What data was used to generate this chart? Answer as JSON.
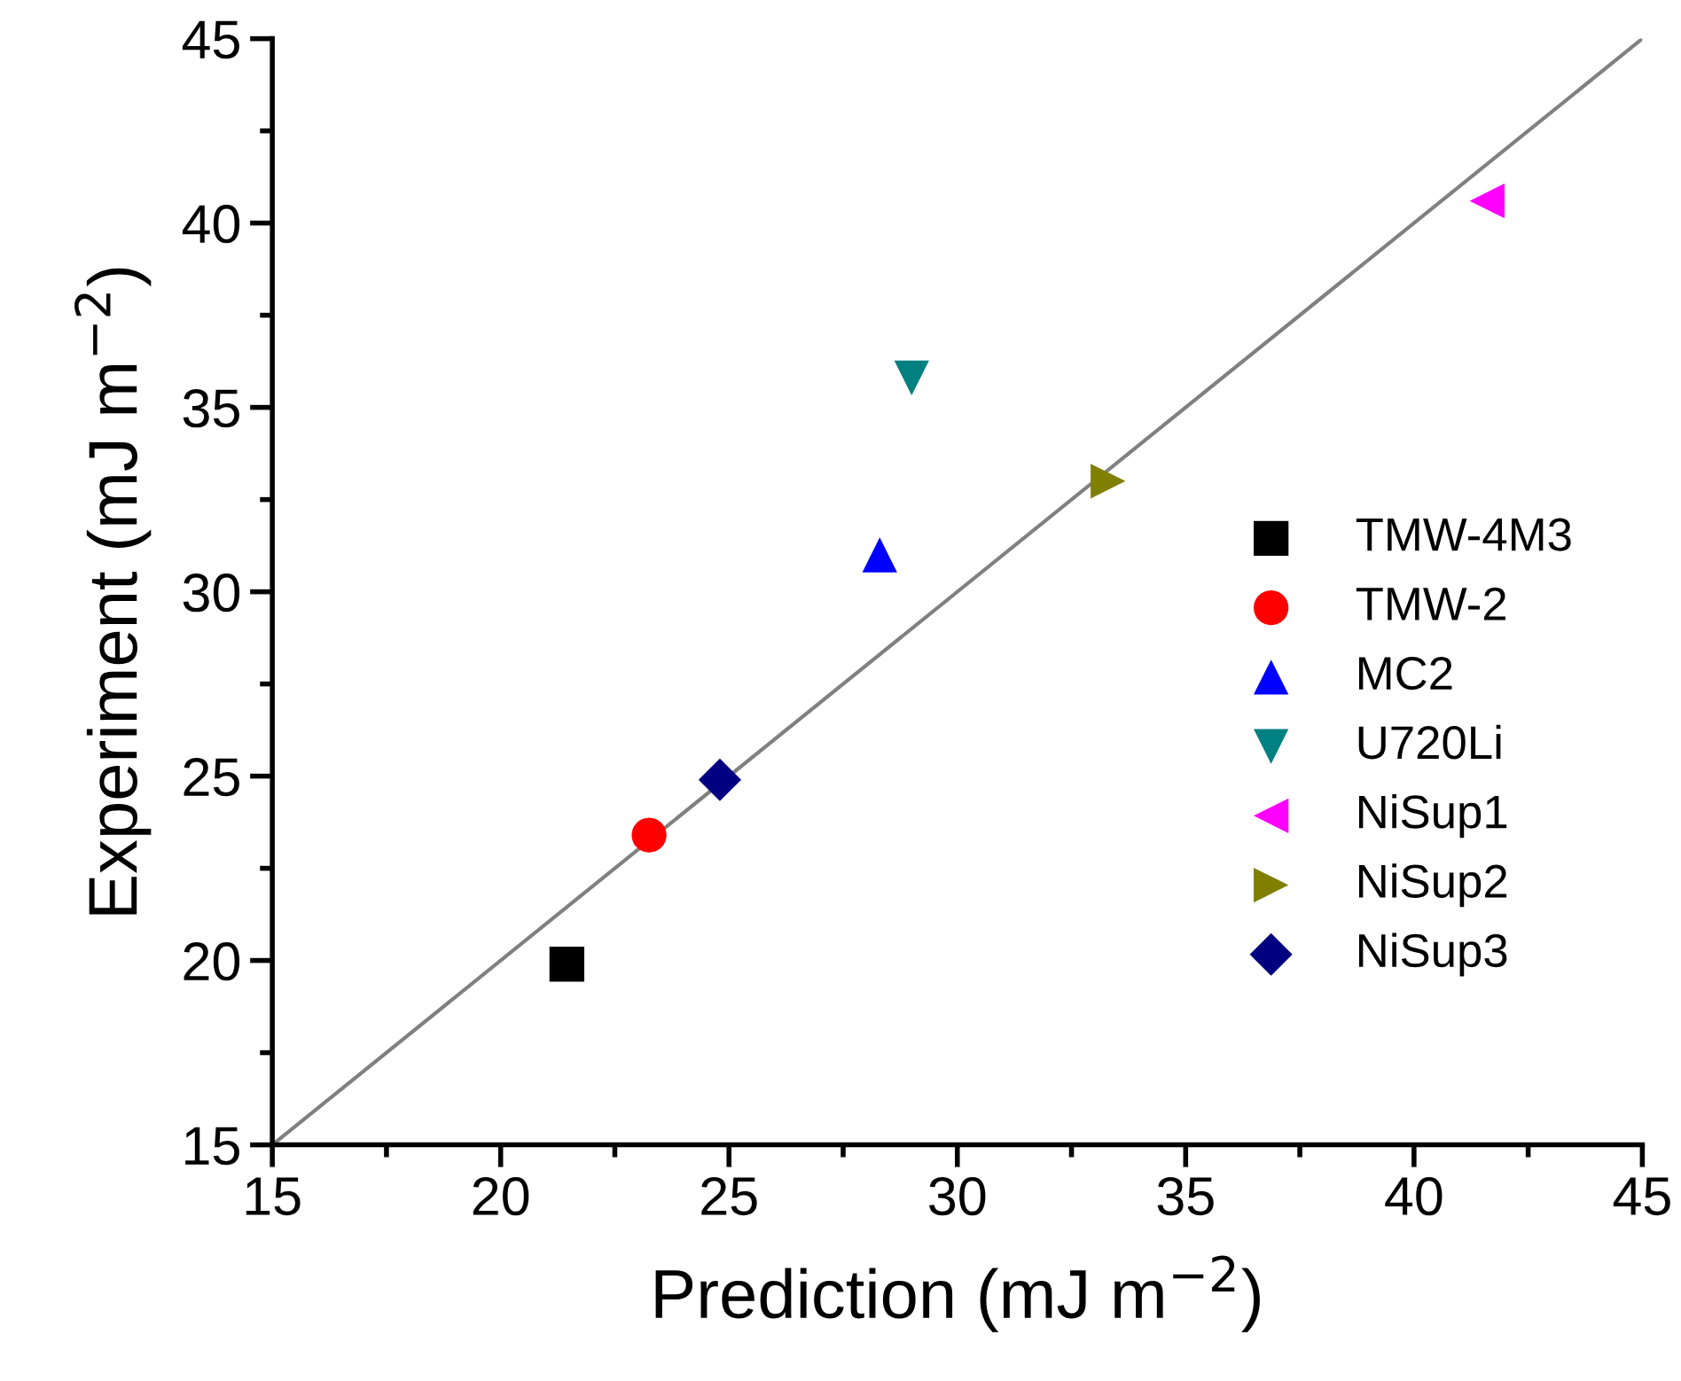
{
  "chart_data": {
    "type": "scatter",
    "xlabel": "Prediction (mJ m$^{−2}$)",
    "ylabel": "Experiment (mJ m$^{−2}$)",
    "xlim": [
      15,
      45
    ],
    "ylim": [
      15,
      45
    ],
    "xticks": [
      15,
      20,
      25,
      30,
      35,
      40,
      45
    ],
    "yticks": [
      15,
      20,
      25,
      30,
      35,
      40,
      45
    ],
    "grid": false,
    "legend": "right",
    "series": [
      {
        "type": "line",
        "x": [
          15,
          45
        ],
        "values": [
          15,
          45
        ],
        "color": "#808080",
        "marker": "none",
        "line_style": "solid"
      },
      {
        "name": "TMW-4M3",
        "color": "#000000",
        "marker": "square",
        "x": [
          21.45
        ],
        "values": [
          19.9
        ]
      },
      {
        "name": "TMW-2",
        "color": "#ff0000",
        "marker": "circle",
        "x": [
          23.25
        ],
        "values": [
          23.4
        ]
      },
      {
        "name": "MC2",
        "color": "#0000ff",
        "marker": "triangle",
        "x": [
          28.3
        ],
        "values": [
          31.0
        ]
      },
      {
        "name": "U720Li",
        "color": "#008080",
        "marker": "triangle-down",
        "x": [
          29.0
        ],
        "values": [
          35.8
        ]
      },
      {
        "name": "NiSup1",
        "color": "#ff00ff",
        "marker": "triangle-left",
        "x": [
          41.6
        ],
        "values": [
          40.6
        ]
      },
      {
        "name": "NiSup2",
        "color": "#808000",
        "marker": "triangle-right",
        "x": [
          33.3
        ],
        "values": [
          33.0
        ]
      },
      {
        "name": "NiSup3",
        "color": "#000080",
        "marker": "diamond",
        "x": [
          24.8
        ],
        "values": [
          24.9
        ]
      }
    ]
  }
}
